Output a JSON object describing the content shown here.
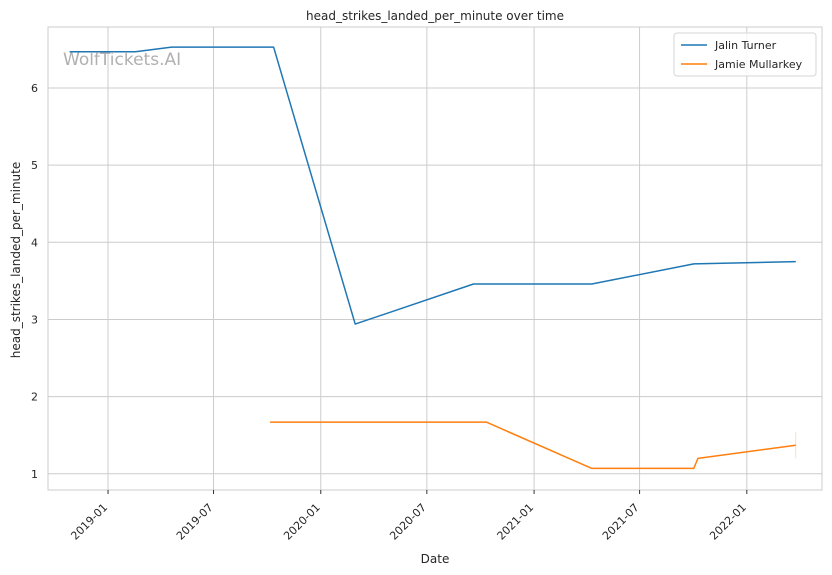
{
  "chart_data": {
    "type": "line",
    "title": "head_strikes_landed_per_minute over time",
    "xlabel": "Date",
    "ylabel": "head_strikes_landed_per_minute",
    "watermark": "WolfTickets.AI",
    "x_ticks": [
      "2019-01",
      "2019-07",
      "2020-01",
      "2020-07",
      "2021-01",
      "2021-07",
      "2022-01"
    ],
    "y_ticks": [
      1,
      2,
      3,
      4,
      5,
      6
    ],
    "xlim": [
      "2018-09-20",
      "2022-05-10"
    ],
    "ylim": [
      0.79,
      6.79
    ],
    "grid": true,
    "legend_position": "top-right",
    "series": [
      {
        "name": "Jalin Turner",
        "color": "#1f77b4",
        "points": [
          {
            "x": "2018-10-27",
            "y": 6.47
          },
          {
            "x": "2019-02-17",
            "y": 6.47
          },
          {
            "x": "2019-04-20",
            "y": 6.53
          },
          {
            "x": "2019-10-12",
            "y": 6.53
          },
          {
            "x": "2020-02-29",
            "y": 2.94
          },
          {
            "x": "2020-09-19",
            "y": 3.46
          },
          {
            "x": "2021-04-10",
            "y": 3.46
          },
          {
            "x": "2021-10-02",
            "y": 3.72
          },
          {
            "x": "2022-03-26",
            "y": 3.75
          }
        ]
      },
      {
        "name": "Jamie Mullarkey",
        "color": "#ff7f0e",
        "points": [
          {
            "x": "2019-10-06",
            "y": 1.67
          },
          {
            "x": "2020-10-11",
            "y": 1.67
          },
          {
            "x": "2021-04-10",
            "y": 1.07
          },
          {
            "x": "2021-10-02",
            "y": 1.07
          },
          {
            "x": "2021-10-09",
            "y": 1.2
          },
          {
            "x": "2022-03-26",
            "y": 1.37
          }
        ]
      }
    ]
  }
}
